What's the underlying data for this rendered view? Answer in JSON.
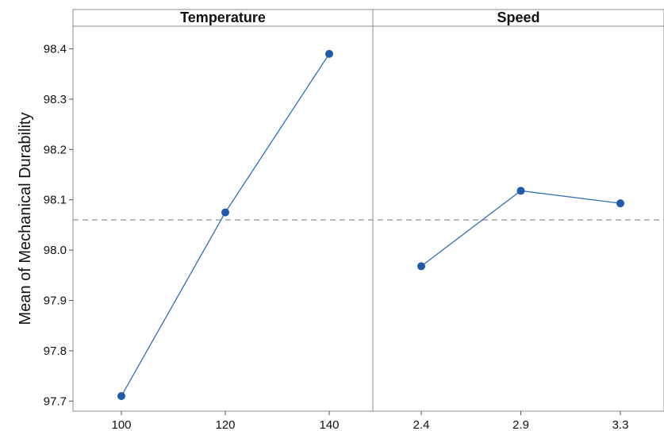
{
  "chart_data": {
    "type": "line",
    "ylabel": "Mean of Mechanical Durability",
    "ylim": [
      97.68,
      98.445
    ],
    "y_ticks": [
      "97.7",
      "97.8",
      "97.9",
      "98.0",
      "98.1",
      "98.2",
      "98.3",
      "98.4"
    ],
    "reference_mean": 98.06,
    "grid": false,
    "panels": [
      {
        "title": "Temperature",
        "categories": [
          "100",
          "120",
          "140"
        ],
        "values": [
          97.71,
          98.075,
          98.39
        ]
      },
      {
        "title": "Speed",
        "categories": [
          "2.4",
          "2.9",
          "3.3"
        ],
        "values": [
          97.968,
          98.118,
          98.093
        ]
      }
    ],
    "colors": {
      "line": "#2f6fb5",
      "marker": "#1f5ba6",
      "reference": "#9a9a9a",
      "frame": "#8c8c8c"
    }
  }
}
